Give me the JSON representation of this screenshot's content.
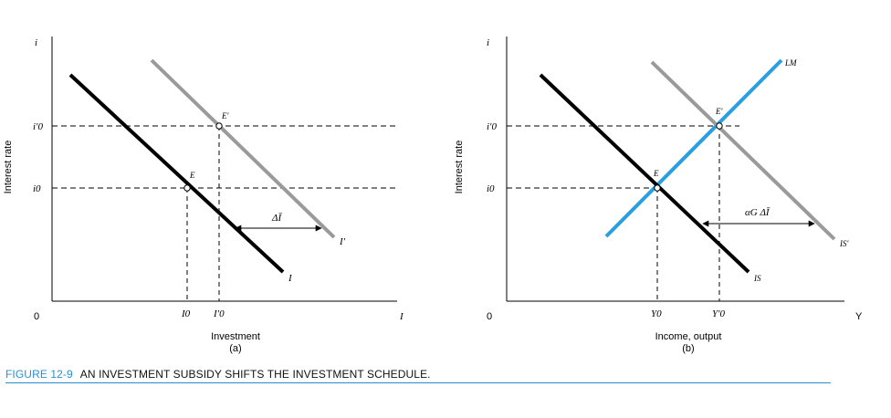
{
  "caption": {
    "figure_number": "FIGURE 12-9",
    "title": "AN INVESTMENT SUBSIDY SHIFTS THE INVESTMENT SCHEDULE."
  },
  "colors": {
    "caption_blue": "#2a8fd0",
    "lm_line": "#2a9fe0",
    "original_line": "#000000",
    "shifted_line": "#999999"
  },
  "panel_a": {
    "y_axis_label": "Interest rate",
    "y_axis_symbol": "i",
    "origin": "0",
    "x_axis_symbol": "I",
    "x_axis_title": "Investment",
    "panel_label": "(a)",
    "i0_label": "i0",
    "i0p_label": "i′0",
    "I0_label": "I0",
    "I0p_label": "I′0",
    "E_label": "E",
    "Ep_label": "E′",
    "curve_I_label": "I",
    "curve_Ip_label": "I′",
    "shift_label": "ΔĪ"
  },
  "panel_b": {
    "y_axis_label": "Interest rate",
    "y_axis_symbol": "i",
    "origin": "0",
    "x_axis_symbol": "Y",
    "x_axis_title": "Income, output",
    "panel_label": "(b)",
    "i0_label": "i0",
    "i0p_label": "i′0",
    "Y0_label": "Y0",
    "Y0p_label": "Y′0",
    "E_label": "E",
    "Ep_label": "E′",
    "LM_label": "LM",
    "IS_label": "IS",
    "ISp_label": "IS′",
    "shift_label": "αG ΔĪ"
  }
}
